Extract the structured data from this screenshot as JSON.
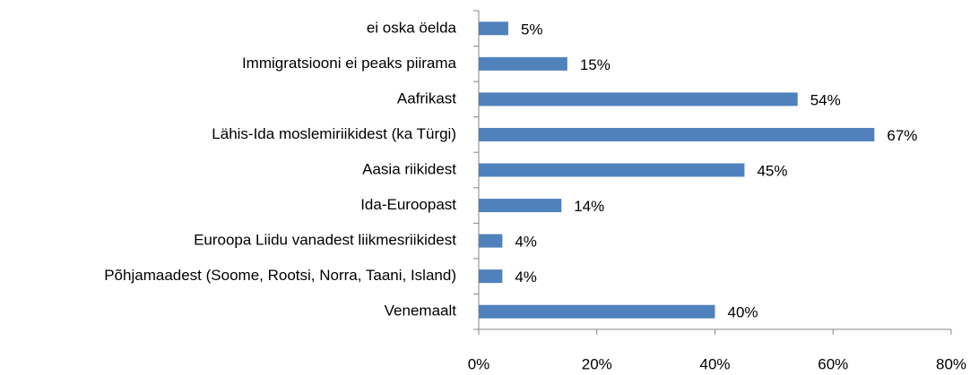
{
  "chart_data": {
    "type": "bar",
    "orientation": "horizontal",
    "categories": [
      "ei oska öelda",
      "Immigratsiooni ei peaks piirama",
      "Aafrikast",
      "Lähis-Ida moslemiriikidest (ka Türgi)",
      "Aasia riikidest",
      "Ida-Euroopast",
      "Euroopa Liidu vanadest liikmesriikidest",
      "Põhjamaadest (Soome, Rootsi, Norra, Taani, Island)",
      "Venemaalt"
    ],
    "values": [
      5,
      15,
      54,
      67,
      45,
      14,
      4,
      4,
      40
    ],
    "value_labels": [
      "5%",
      "15%",
      "54%",
      "67%",
      "45%",
      "14%",
      "4%",
      "4%",
      "40%"
    ],
    "color": "#4f81bd",
    "xlim": [
      0,
      80
    ],
    "xticks": [
      {
        "value": 0,
        "label": "0%"
      },
      {
        "value": 20,
        "label": "20%"
      },
      {
        "value": 40,
        "label": "40%"
      },
      {
        "value": 60,
        "label": "60%"
      },
      {
        "value": 80,
        "label": "80%"
      }
    ]
  }
}
